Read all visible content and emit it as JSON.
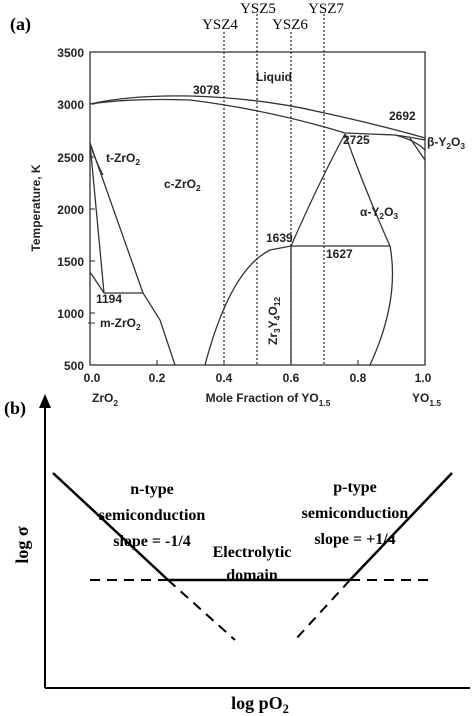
{
  "panel_a": {
    "label": "(a)",
    "ysz": [
      "YSZ4",
      "YSZ5",
      "YSZ6",
      "YSZ7"
    ],
    "y_axis_title": "Temperature, K",
    "y_ticks": [
      "3500",
      "3000",
      "2500",
      "2000",
      "1500",
      "1000",
      "500"
    ],
    "x_ticks": [
      "0.0",
      "0.2",
      "0.4",
      "0.6",
      "0.8",
      "1.0"
    ],
    "x_axis_title": {
      "text": "Mole Fraction of YO",
      "sub": "1.5"
    },
    "x_left": {
      "text": "ZrO",
      "sub": "2"
    },
    "x_right": {
      "text": "YO",
      "sub": "1.5"
    },
    "annotations": {
      "t3078": "3078",
      "liquid": "Liquid",
      "t2692": "2692",
      "t2725": "2725",
      "beta": {
        "text": "β-Y",
        "sub1": "2",
        "mid": "O",
        "sub2": "3"
      },
      "tzro2": {
        "text": "t-ZrO",
        "sub": "2"
      },
      "czro2": {
        "text": "c-ZrO",
        "sub": "2"
      },
      "alpha": {
        "text": "α-Y",
        "sub1": "2",
        "mid": "O",
        "sub2": "3"
      },
      "t1639": "1639",
      "t1627": "1627",
      "t1194": "1194",
      "mzro2": {
        "text": "m-ZrO",
        "sub": "2"
      },
      "zr3y4o12": {
        "a": "Zr",
        "s1": "3",
        "b": "Y",
        "s2": "4",
        "c": "O",
        "s3": "12"
      }
    }
  },
  "panel_b": {
    "label": "(b)",
    "y_axis_title": "log σ",
    "x_axis_title": {
      "text": "log pO",
      "sub": "2"
    },
    "n_type": [
      "n-type",
      "semiconduction",
      "slope = -1/4"
    ],
    "p_type": [
      "p-type",
      "semiconduction",
      "slope = +1/4"
    ],
    "electrolytic": [
      "Electrolytic",
      "domain"
    ]
  }
}
